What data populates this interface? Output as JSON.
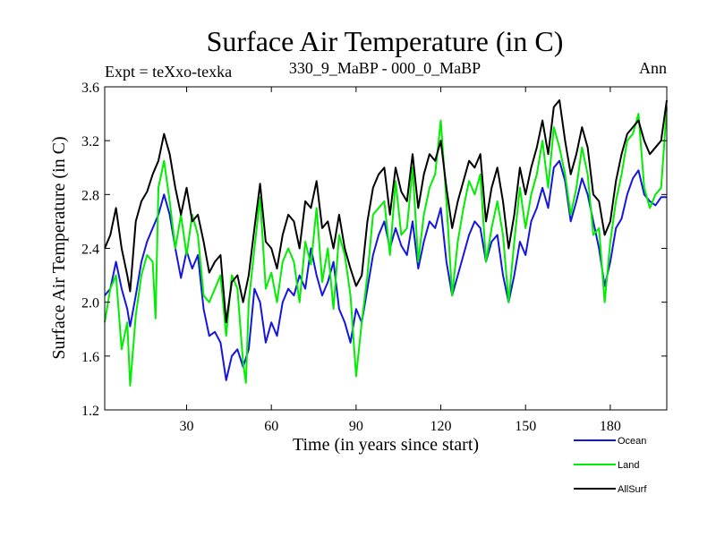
{
  "chart_data": {
    "type": "line",
    "title": "Surface Air Temperature (in C)",
    "left_string": "Expt = teXxo-texka",
    "center_string": "330_9_MaBP - 000_0_MaBP",
    "right_string": "Ann",
    "xlabel": "Time (in years since start)",
    "ylabel": "Surface Air Temperature (in C)",
    "xlim": [
      1,
      200
    ],
    "ylim": [
      1.2,
      3.6
    ],
    "xticks": [
      30,
      60,
      90,
      120,
      150,
      180
    ],
    "yticks": [
      1.2,
      1.6,
      2.0,
      2.4,
      2.8,
      3.2,
      3.6
    ],
    "ytick_labels": [
      "1.2",
      "1.6",
      "2.0",
      "2.4",
      "2.8",
      "3.2",
      "3.6"
    ],
    "legend_position": "bottom-right",
    "series": [
      {
        "name": "Ocean",
        "color": "#1515e0",
        "points": [
          [
            1,
            2.05
          ],
          [
            3,
            2.1
          ],
          [
            5,
            2.3
          ],
          [
            7,
            2.1
          ],
          [
            9,
            1.95
          ],
          [
            10,
            1.82
          ],
          [
            12,
            2.05
          ],
          [
            14,
            2.3
          ],
          [
            16,
            2.45
          ],
          [
            18,
            2.55
          ],
          [
            20,
            2.65
          ],
          [
            22,
            2.8
          ],
          [
            24,
            2.65
          ],
          [
            26,
            2.4
          ],
          [
            28,
            2.18
          ],
          [
            30,
            2.38
          ],
          [
            32,
            2.25
          ],
          [
            34,
            2.35
          ],
          [
            36,
            1.95
          ],
          [
            38,
            1.75
          ],
          [
            40,
            1.78
          ],
          [
            42,
            1.7
          ],
          [
            44,
            1.42
          ],
          [
            46,
            1.6
          ],
          [
            48,
            1.65
          ],
          [
            50,
            1.52
          ],
          [
            52,
            1.65
          ],
          [
            54,
            2.1
          ],
          [
            56,
            2.0
          ],
          [
            58,
            1.7
          ],
          [
            60,
            1.85
          ],
          [
            62,
            1.75
          ],
          [
            64,
            2.0
          ],
          [
            66,
            2.1
          ],
          [
            68,
            2.05
          ],
          [
            70,
            2.2
          ],
          [
            72,
            2.1
          ],
          [
            74,
            2.4
          ],
          [
            76,
            2.2
          ],
          [
            78,
            2.05
          ],
          [
            80,
            2.15
          ],
          [
            82,
            2.3
          ],
          [
            84,
            1.95
          ],
          [
            86,
            1.85
          ],
          [
            88,
            1.7
          ],
          [
            90,
            1.95
          ],
          [
            92,
            1.85
          ],
          [
            94,
            2.1
          ],
          [
            96,
            2.35
          ],
          [
            98,
            2.5
          ],
          [
            100,
            2.6
          ],
          [
            102,
            2.4
          ],
          [
            104,
            2.55
          ],
          [
            106,
            2.42
          ],
          [
            108,
            2.35
          ],
          [
            110,
            2.6
          ],
          [
            112,
            2.25
          ],
          [
            114,
            2.45
          ],
          [
            116,
            2.6
          ],
          [
            118,
            2.55
          ],
          [
            120,
            2.7
          ],
          [
            122,
            2.3
          ],
          [
            124,
            2.05
          ],
          [
            126,
            2.2
          ],
          [
            128,
            2.35
          ],
          [
            130,
            2.5
          ],
          [
            132,
            2.6
          ],
          [
            134,
            2.55
          ],
          [
            136,
            2.3
          ],
          [
            138,
            2.45
          ],
          [
            140,
            2.5
          ],
          [
            142,
            2.2
          ],
          [
            144,
            2.0
          ],
          [
            146,
            2.2
          ],
          [
            148,
            2.45
          ],
          [
            150,
            2.35
          ],
          [
            152,
            2.6
          ],
          [
            154,
            2.7
          ],
          [
            156,
            2.85
          ],
          [
            158,
            2.7
          ],
          [
            160,
            3.0
          ],
          [
            162,
            3.05
          ],
          [
            164,
            2.9
          ],
          [
            166,
            2.6
          ],
          [
            168,
            2.75
          ],
          [
            170,
            2.92
          ],
          [
            172,
            2.8
          ],
          [
            174,
            2.6
          ],
          [
            176,
            2.4
          ],
          [
            178,
            2.12
          ],
          [
            180,
            2.3
          ],
          [
            182,
            2.55
          ],
          [
            184,
            2.62
          ],
          [
            186,
            2.8
          ],
          [
            188,
            2.92
          ],
          [
            190,
            2.98
          ],
          [
            192,
            2.8
          ],
          [
            194,
            2.75
          ],
          [
            196,
            2.72
          ],
          [
            198,
            2.78
          ],
          [
            200,
            2.78
          ]
        ]
      },
      {
        "name": "Land",
        "color": "#00ee00",
        "points": [
          [
            1,
            1.85
          ],
          [
            3,
            2.1
          ],
          [
            5,
            2.2
          ],
          [
            7,
            1.65
          ],
          [
            9,
            1.85
          ],
          [
            10,
            1.38
          ],
          [
            12,
            1.9
          ],
          [
            14,
            2.2
          ],
          [
            16,
            2.35
          ],
          [
            18,
            2.3
          ],
          [
            19,
            1.88
          ],
          [
            20,
            2.85
          ],
          [
            22,
            3.05
          ],
          [
            24,
            2.75
          ],
          [
            26,
            2.4
          ],
          [
            28,
            2.65
          ],
          [
            30,
            2.35
          ],
          [
            32,
            2.65
          ],
          [
            34,
            2.5
          ],
          [
            36,
            2.05
          ],
          [
            38,
            2.0
          ],
          [
            40,
            2.1
          ],
          [
            42,
            2.2
          ],
          [
            44,
            1.75
          ],
          [
            46,
            2.2
          ],
          [
            48,
            2.1
          ],
          [
            50,
            1.55
          ],
          [
            51,
            1.4
          ],
          [
            52,
            2.0
          ],
          [
            54,
            2.4
          ],
          [
            56,
            2.78
          ],
          [
            58,
            2.1
          ],
          [
            60,
            2.22
          ],
          [
            62,
            2.0
          ],
          [
            64,
            2.3
          ],
          [
            66,
            2.4
          ],
          [
            68,
            2.3
          ],
          [
            70,
            2.0
          ],
          [
            72,
            2.45
          ],
          [
            74,
            2.28
          ],
          [
            76,
            2.7
          ],
          [
            78,
            2.15
          ],
          [
            80,
            2.4
          ],
          [
            82,
            1.95
          ],
          [
            84,
            2.5
          ],
          [
            86,
            2.35
          ],
          [
            88,
            2.05
          ],
          [
            90,
            1.45
          ],
          [
            92,
            1.85
          ],
          [
            94,
            2.2
          ],
          [
            96,
            2.65
          ],
          [
            98,
            2.7
          ],
          [
            100,
            2.75
          ],
          [
            102,
            2.35
          ],
          [
            104,
            2.9
          ],
          [
            106,
            2.5
          ],
          [
            108,
            2.55
          ],
          [
            110,
            3.0
          ],
          [
            112,
            2.3
          ],
          [
            114,
            2.65
          ],
          [
            116,
            2.85
          ],
          [
            118,
            2.95
          ],
          [
            120,
            3.35
          ],
          [
            122,
            2.75
          ],
          [
            124,
            2.05
          ],
          [
            126,
            2.45
          ],
          [
            128,
            2.7
          ],
          [
            130,
            2.9
          ],
          [
            132,
            2.8
          ],
          [
            134,
            2.95
          ],
          [
            136,
            2.3
          ],
          [
            138,
            2.55
          ],
          [
            140,
            2.75
          ],
          [
            142,
            2.5
          ],
          [
            144,
            2.0
          ],
          [
            146,
            2.45
          ],
          [
            148,
            2.85
          ],
          [
            150,
            2.55
          ],
          [
            152,
            2.8
          ],
          [
            154,
            2.95
          ],
          [
            156,
            3.2
          ],
          [
            158,
            2.85
          ],
          [
            160,
            3.3
          ],
          [
            162,
            3.15
          ],
          [
            164,
            2.95
          ],
          [
            166,
            2.65
          ],
          [
            168,
            2.85
          ],
          [
            170,
            3.15
          ],
          [
            172,
            2.95
          ],
          [
            174,
            2.5
          ],
          [
            176,
            2.55
          ],
          [
            178,
            2.0
          ],
          [
            180,
            2.45
          ],
          [
            182,
            2.75
          ],
          [
            184,
            2.95
          ],
          [
            186,
            3.2
          ],
          [
            188,
            3.25
          ],
          [
            190,
            3.4
          ],
          [
            192,
            2.85
          ],
          [
            194,
            2.7
          ],
          [
            196,
            2.8
          ],
          [
            198,
            2.85
          ],
          [
            200,
            3.45
          ]
        ]
      },
      {
        "name": "AllSurf",
        "color": "#000000",
        "points": [
          [
            1,
            2.4
          ],
          [
            3,
            2.5
          ],
          [
            5,
            2.7
          ],
          [
            7,
            2.4
          ],
          [
            9,
            2.2
          ],
          [
            10,
            2.08
          ],
          [
            12,
            2.6
          ],
          [
            14,
            2.75
          ],
          [
            16,
            2.82
          ],
          [
            18,
            2.95
          ],
          [
            20,
            3.05
          ],
          [
            22,
            3.25
          ],
          [
            24,
            3.1
          ],
          [
            26,
            2.85
          ],
          [
            28,
            2.65
          ],
          [
            30,
            2.85
          ],
          [
            32,
            2.6
          ],
          [
            34,
            2.65
          ],
          [
            36,
            2.45
          ],
          [
            38,
            2.22
          ],
          [
            40,
            2.3
          ],
          [
            42,
            2.35
          ],
          [
            44,
            1.85
          ],
          [
            46,
            2.15
          ],
          [
            48,
            2.2
          ],
          [
            50,
            2.0
          ],
          [
            52,
            2.2
          ],
          [
            54,
            2.55
          ],
          [
            56,
            2.88
          ],
          [
            58,
            2.45
          ],
          [
            60,
            2.4
          ],
          [
            62,
            2.25
          ],
          [
            64,
            2.5
          ],
          [
            66,
            2.65
          ],
          [
            68,
            2.6
          ],
          [
            70,
            2.4
          ],
          [
            72,
            2.75
          ],
          [
            74,
            2.7
          ],
          [
            76,
            2.9
          ],
          [
            78,
            2.55
          ],
          [
            80,
            2.6
          ],
          [
            82,
            2.4
          ],
          [
            84,
            2.65
          ],
          [
            86,
            2.4
          ],
          [
            88,
            2.25
          ],
          [
            90,
            2.12
          ],
          [
            92,
            2.2
          ],
          [
            94,
            2.6
          ],
          [
            96,
            2.85
          ],
          [
            98,
            2.95
          ],
          [
            100,
            3.0
          ],
          [
            102,
            2.65
          ],
          [
            104,
            3.0
          ],
          [
            106,
            2.82
          ],
          [
            108,
            2.75
          ],
          [
            110,
            3.1
          ],
          [
            112,
            2.7
          ],
          [
            114,
            2.95
          ],
          [
            116,
            3.1
          ],
          [
            118,
            3.05
          ],
          [
            120,
            3.2
          ],
          [
            122,
            2.85
          ],
          [
            124,
            2.55
          ],
          [
            126,
            2.75
          ],
          [
            128,
            2.9
          ],
          [
            130,
            3.05
          ],
          [
            132,
            3.0
          ],
          [
            134,
            3.1
          ],
          [
            136,
            2.6
          ],
          [
            138,
            2.85
          ],
          [
            140,
            3.0
          ],
          [
            142,
            2.75
          ],
          [
            144,
            2.4
          ],
          [
            146,
            2.65
          ],
          [
            148,
            3.0
          ],
          [
            150,
            2.8
          ],
          [
            152,
            3.0
          ],
          [
            154,
            3.15
          ],
          [
            156,
            3.35
          ],
          [
            158,
            3.1
          ],
          [
            160,
            3.45
          ],
          [
            162,
            3.5
          ],
          [
            164,
            3.2
          ],
          [
            166,
            2.95
          ],
          [
            168,
            3.1
          ],
          [
            170,
            3.3
          ],
          [
            172,
            3.15
          ],
          [
            174,
            2.8
          ],
          [
            176,
            2.75
          ],
          [
            178,
            2.5
          ],
          [
            180,
            2.6
          ],
          [
            182,
            2.9
          ],
          [
            184,
            3.1
          ],
          [
            186,
            3.25
          ],
          [
            188,
            3.3
          ],
          [
            190,
            3.35
          ],
          [
            192,
            3.2
          ],
          [
            194,
            3.1
          ],
          [
            196,
            3.15
          ],
          [
            198,
            3.2
          ],
          [
            200,
            3.5
          ]
        ]
      }
    ]
  }
}
